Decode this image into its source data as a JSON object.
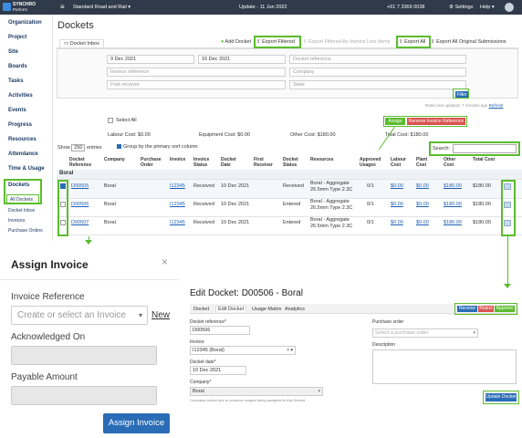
{
  "topbar": {
    "logo_main": "SYNCHRO",
    "logo_sub": "Perform",
    "project": "Standard Road and Rail ▾",
    "update": "Update - 11 Jun 2022",
    "phone": "+61 7 3369 0038",
    "settings": "⚙ Settings",
    "help": "Help ▾"
  },
  "sidebar": {
    "items": [
      "Organization",
      "Project",
      "Site",
      "Boards",
      "Tasks",
      "Activities",
      "Events",
      "Progress",
      "Resources",
      "Attendance",
      "Time & Usage",
      "Dockets"
    ],
    "sub_items": [
      "All Dockets",
      "Docket Inbox",
      "Invoices",
      "Purchase Orders"
    ]
  },
  "page": {
    "title": "Dockets",
    "tab_inbox": "Docket Inbox",
    "add_docket": "Add Docket",
    "export_filtered": "Export Filtered",
    "export_filtered_invoice": "Export Filtered As Invoice Line Items",
    "export_all": "Export All",
    "export_all_original": "Export All Original Submissions"
  },
  "filters": {
    "date_from": "9 Dec 2021",
    "date_to": "15 Dec 2021",
    "docket_reference": "Docket reference",
    "invoice_reference": "Invoice reference",
    "company": "Company",
    "first_receiver": "First receiver",
    "state": "State",
    "filter_btn": "Filter",
    "rates_updated": "Rates last updated: 7 minutes ago",
    "refresh": "Refresh"
  },
  "summary": {
    "select_all": "Select All",
    "assign": "Assign",
    "remove_invoice_ref": "Remove Invoice Reference",
    "labour_cost": "Labour Cost: $0.00",
    "equipment_cost": "Equipment Cost: $0.00",
    "other_cost": "Other Cost: $180.00",
    "total_cost": "Total Cost: $180.00",
    "show": "Show",
    "show_count": "250",
    "entries": "entries",
    "group_by": "Group by the primary sort column",
    "search": "Search:"
  },
  "table": {
    "headers": [
      "Docket Reference",
      "Company",
      "Purchase Order",
      "Invoice",
      "Invoice Status",
      "Docket Date",
      "First Receiver",
      "Docket Status",
      "Resources",
      "Approved Usages",
      "Labour Cost",
      "Plant Cost",
      "Other Cost",
      "Total Cost"
    ],
    "group": "Boral",
    "rows": [
      {
        "ref": "D00505",
        "company": "Boral",
        "invoice": "I12345",
        "inv_status": "Received",
        "date": "10 Dec 2021",
        "docket_status": "Received",
        "resources": "Boral - Aggregate 26.5mm Type 2.3C",
        "usages": "0/1",
        "labour": "$0.00",
        "plant": "$0.00",
        "other": "$180.00",
        "total": "$180.00",
        "checked": true
      },
      {
        "ref": "D00506",
        "company": "Boral",
        "invoice": "I12345",
        "inv_status": "Received",
        "date": "10 Dec 2021",
        "docket_status": "Entered",
        "resources": "Boral - Aggregate 26.5mm Type 2.3C",
        "usages": "0/1",
        "labour": "$0.00",
        "plant": "$0.00",
        "other": "$180.00",
        "total": "$180.00",
        "checked": false
      },
      {
        "ref": "D00507",
        "company": "Boral",
        "invoice": "I12345",
        "inv_status": "Received",
        "date": "10 Dec 2021",
        "docket_status": "Entered",
        "resources": "Boral - Aggregate 26.5mm Type 2.3C",
        "usages": "0/1",
        "labour": "$0.00",
        "plant": "$0.00",
        "other": "$180.00",
        "total": "$180.00",
        "checked": false
      }
    ]
  },
  "assign_invoice": {
    "title": "Assign Invoice",
    "close": "×",
    "invoice_reference_label": "Invoice Reference",
    "invoice_placeholder": "Create or select an Invoice",
    "new_link": "New",
    "acknowledged_label": "Acknowledged On",
    "payable_label": "Payable Amount",
    "assign_btn": "Assign Invoice"
  },
  "edit_docket": {
    "title": "Edit Docket: D00506 - Boral",
    "tabs": [
      "Docket",
      "Edit Docket",
      "Usage Matrix",
      "Analytics"
    ],
    "receive": "Receive",
    "reject": "Reject",
    "approve": "Approve",
    "docket_reference_label": "Docket reference*",
    "docket_reference_value": "D00506",
    "invoice_label": "Invoice",
    "invoice_value": "I12345 (Boral)",
    "docket_date_label": "Docket date*",
    "docket_date_value": "10 Dec 2021",
    "company_label": "Company*",
    "company_value": "Boral",
    "company_note": "Company locked due to resource usages being assigned to this Docket",
    "purchase_order_label": "Purchase order",
    "purchase_order_placeholder": "Select a purchase order",
    "description_label": "Description",
    "update_btn": "Update Docket"
  }
}
